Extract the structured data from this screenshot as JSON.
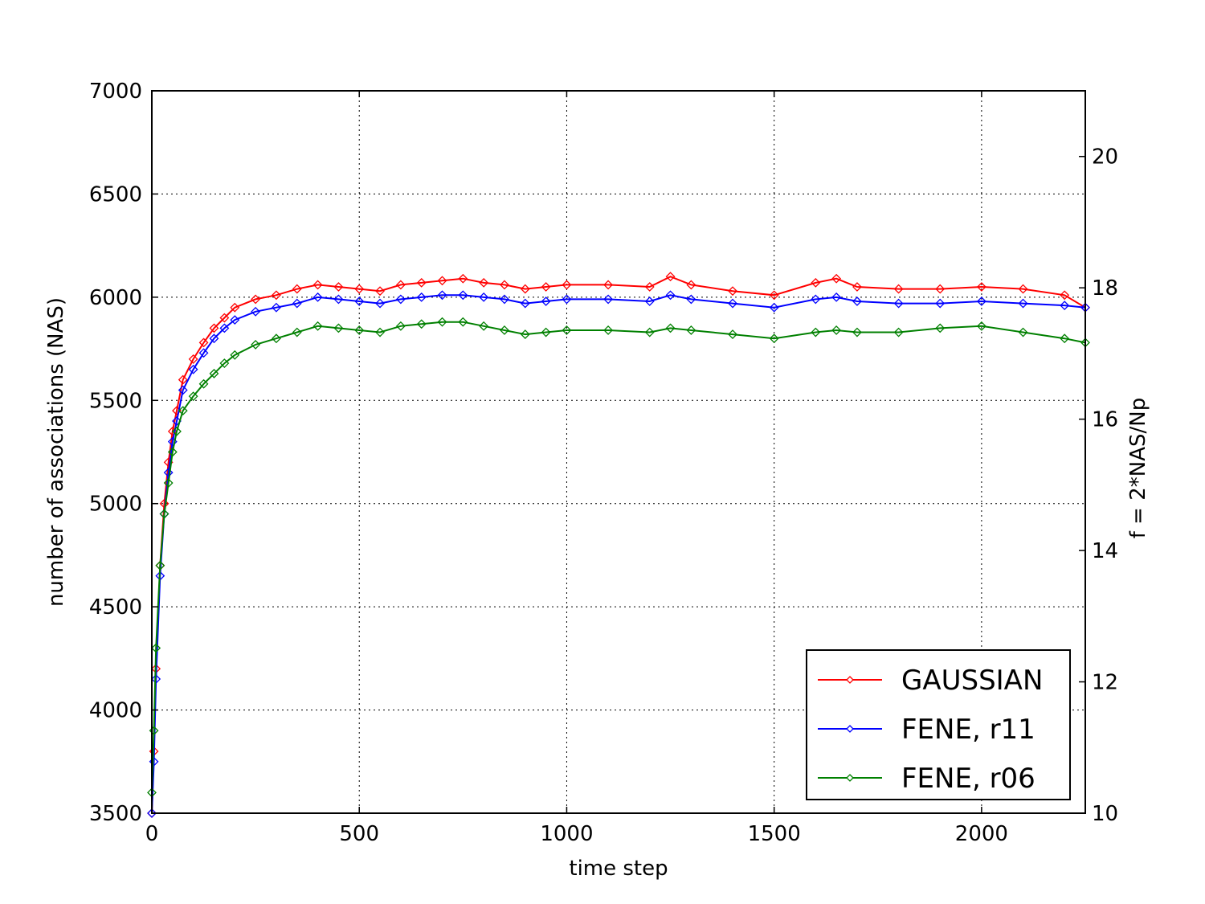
{
  "chart_data": {
    "type": "line",
    "title": "",
    "xlabel": "time step",
    "ylabel": "number of associations (NAS)",
    "y2label": "f = 2*NAS/Np",
    "xlim": [
      0,
      2250
    ],
    "ylim": [
      3500,
      7000
    ],
    "y2lim": [
      10,
      21
    ],
    "xticks": [
      0,
      500,
      1000,
      1500,
      2000
    ],
    "yticks": [
      3500,
      4000,
      4500,
      5000,
      5500,
      6000,
      6500,
      7000
    ],
    "y2ticks": [
      10,
      12,
      14,
      16,
      18,
      20
    ],
    "grid": true,
    "legend_position": "bottom-right",
    "marker": "diamond",
    "series": [
      {
        "name": "GAUSSIAN",
        "color": "#ff0000",
        "x": [
          0,
          5,
          10,
          20,
          30,
          40,
          50,
          60,
          75,
          100,
          125,
          150,
          175,
          200,
          250,
          300,
          350,
          400,
          450,
          500,
          550,
          600,
          650,
          700,
          750,
          800,
          850,
          900,
          950,
          1000,
          1100,
          1200,
          1250,
          1300,
          1400,
          1500,
          1600,
          1650,
          1700,
          1800,
          1900,
          2000,
          2100,
          2200,
          2250
        ],
        "values": [
          3500,
          3800,
          4200,
          4700,
          5000,
          5200,
          5350,
          5450,
          5600,
          5700,
          5780,
          5850,
          5900,
          5950,
          5990,
          6010,
          6040,
          6060,
          6050,
          6040,
          6030,
          6060,
          6070,
          6080,
          6090,
          6070,
          6060,
          6040,
          6050,
          6060,
          6060,
          6050,
          6100,
          6060,
          6030,
          6010,
          6070,
          6090,
          6050,
          6040,
          6040,
          6050,
          6040,
          6010,
          5950
        ]
      },
      {
        "name": "FENE, r11",
        "color": "#0000ff",
        "x": [
          0,
          5,
          10,
          20,
          30,
          40,
          50,
          60,
          75,
          100,
          125,
          150,
          175,
          200,
          250,
          300,
          350,
          400,
          450,
          500,
          550,
          600,
          650,
          700,
          750,
          800,
          850,
          900,
          950,
          1000,
          1100,
          1200,
          1250,
          1300,
          1400,
          1500,
          1600,
          1650,
          1700,
          1800,
          1900,
          2000,
          2100,
          2200,
          2250
        ],
        "values": [
          3500,
          3750,
          4150,
          4650,
          4950,
          5150,
          5300,
          5400,
          5550,
          5650,
          5730,
          5800,
          5850,
          5890,
          5930,
          5950,
          5970,
          6000,
          5990,
          5980,
          5970,
          5990,
          6000,
          6010,
          6010,
          6000,
          5990,
          5970,
          5980,
          5990,
          5990,
          5980,
          6010,
          5990,
          5970,
          5950,
          5990,
          6000,
          5980,
          5970,
          5970,
          5980,
          5970,
          5960,
          5950
        ]
      },
      {
        "name": "FENE, r06",
        "color": "#008000",
        "x": [
          0,
          5,
          10,
          20,
          30,
          40,
          50,
          60,
          75,
          100,
          125,
          150,
          175,
          200,
          250,
          300,
          350,
          400,
          450,
          500,
          550,
          600,
          650,
          700,
          750,
          800,
          850,
          900,
          950,
          1000,
          1100,
          1200,
          1250,
          1300,
          1400,
          1500,
          1600,
          1650,
          1700,
          1800,
          1900,
          2000,
          2100,
          2200,
          2250
        ],
        "values": [
          3600,
          3900,
          4300,
          4700,
          4950,
          5100,
          5250,
          5350,
          5450,
          5520,
          5580,
          5630,
          5680,
          5720,
          5770,
          5800,
          5830,
          5860,
          5850,
          5840,
          5830,
          5860,
          5870,
          5880,
          5880,
          5860,
          5840,
          5820,
          5830,
          5840,
          5840,
          5830,
          5850,
          5840,
          5820,
          5800,
          5830,
          5840,
          5830,
          5830,
          5850,
          5860,
          5830,
          5800,
          5780
        ]
      }
    ]
  }
}
